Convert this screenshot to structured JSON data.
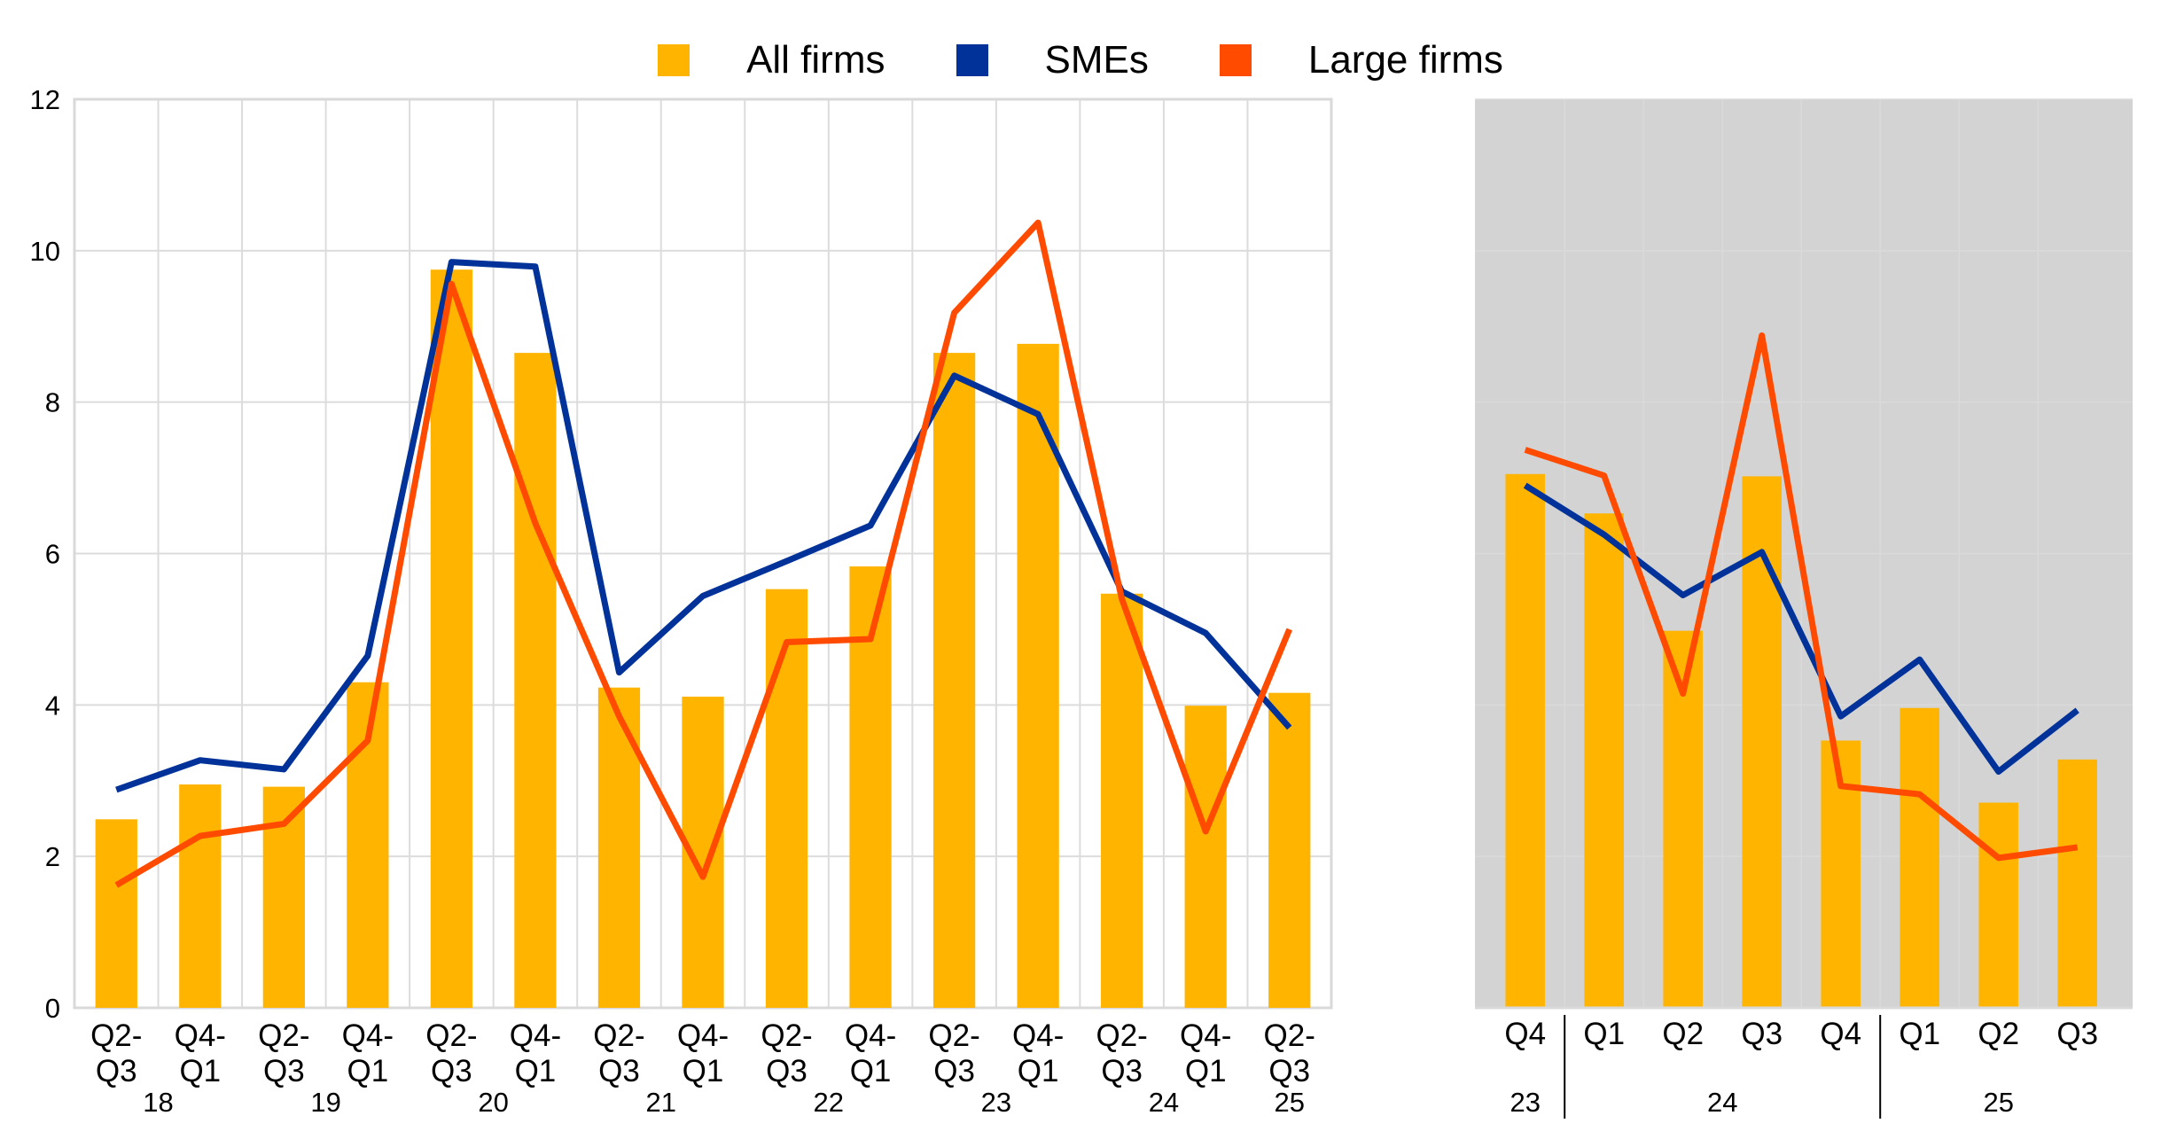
{
  "legend": [
    {
      "label": "All firms",
      "color": "#FFB400"
    },
    {
      "label": "SMEs",
      "color": "#003299"
    },
    {
      "label": "Large firms",
      "color": "#FF4B00"
    }
  ],
  "chart_data": [
    {
      "type": "bar+line",
      "title": "",
      "xlabel": "",
      "ylabel": "",
      "ylim": [
        0,
        12
      ],
      "yticks": [
        0,
        2,
        4,
        6,
        8,
        10,
        12
      ],
      "grid": true,
      "legend_position": "top-center",
      "categories": [
        {
          "line1": "Q2-",
          "line2": "Q3",
          "year": "18"
        },
        {
          "line1": "Q4-",
          "line2": "Q1",
          "year": ""
        },
        {
          "line1": "Q2-",
          "line2": "Q3",
          "year": "19"
        },
        {
          "line1": "Q4-",
          "line2": "Q1",
          "year": ""
        },
        {
          "line1": "Q2-",
          "line2": "Q3",
          "year": "20"
        },
        {
          "line1": "Q4-",
          "line2": "Q1",
          "year": ""
        },
        {
          "line1": "Q2-",
          "line2": "Q3",
          "year": "21"
        },
        {
          "line1": "Q4-",
          "line2": "Q1",
          "year": ""
        },
        {
          "line1": "Q2-",
          "line2": "Q3",
          "year": "22"
        },
        {
          "line1": "Q4-",
          "line2": "Q1",
          "year": ""
        },
        {
          "line1": "Q2-",
          "line2": "Q3",
          "year": "23"
        },
        {
          "line1": "Q4-",
          "line2": "Q1",
          "year": ""
        },
        {
          "line1": "Q2-",
          "line2": "Q3",
          "year": "24"
        },
        {
          "line1": "Q4-",
          "line2": "Q1",
          "year": ""
        },
        {
          "line1": "Q2-",
          "line2": "Q3",
          "year": "25"
        }
      ],
      "series": [
        {
          "name": "All firms",
          "kind": "bar",
          "values": [
            2.49,
            2.95,
            2.92,
            4.3,
            9.75,
            8.65,
            4.23,
            4.11,
            5.53,
            5.83,
            8.65,
            8.77,
            5.47,
            3.99,
            4.16
          ]
        },
        {
          "name": "SMEs",
          "kind": "line",
          "values": [
            2.88,
            3.27,
            3.15,
            4.65,
            9.85,
            9.79,
            4.43,
            5.44,
            5.9,
            6.37,
            8.35,
            7.84,
            5.5,
            4.95,
            3.7
          ]
        },
        {
          "name": "Large firms",
          "kind": "line",
          "values": [
            1.62,
            2.27,
            2.43,
            3.53,
            9.56,
            6.4,
            3.85,
            1.73,
            4.83,
            4.87,
            9.18,
            10.37,
            5.4,
            2.33,
            5.0
          ]
        }
      ]
    },
    {
      "type": "bar+line",
      "title": "",
      "ylim": [
        0,
        12
      ],
      "grid": true,
      "shaded": true,
      "categories": [
        "Q4",
        "Q1",
        "Q2",
        "Q3",
        "Q4",
        "Q1",
        "Q2",
        "Q3"
      ],
      "year_groups": [
        {
          "label": "23",
          "span": 1
        },
        {
          "label": "24",
          "span": 4
        },
        {
          "label": "25",
          "span": 3
        }
      ],
      "series": [
        {
          "name": "All firms",
          "kind": "bar",
          "values": [
            7.05,
            6.53,
            4.98,
            7.02,
            3.53,
            3.96,
            2.71,
            3.28
          ]
        },
        {
          "name": "SMEs",
          "kind": "line",
          "values": [
            6.9,
            6.25,
            5.45,
            6.02,
            3.85,
            4.6,
            3.12,
            3.93
          ]
        },
        {
          "name": "Large firms",
          "kind": "line",
          "values": [
            7.37,
            7.03,
            4.15,
            8.88,
            2.93,
            2.82,
            1.98,
            2.12
          ]
        }
      ]
    }
  ]
}
